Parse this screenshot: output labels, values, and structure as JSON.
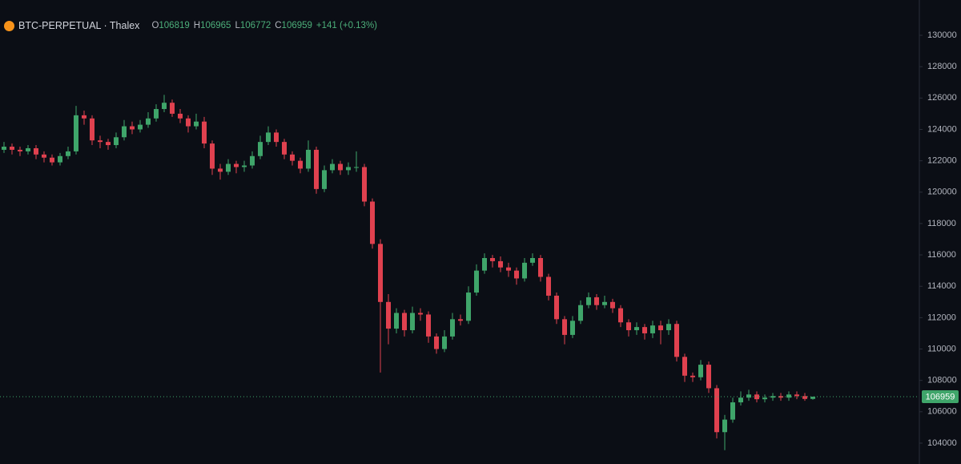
{
  "header": {
    "symbol": "BTC-PERPETUAL · Thalex",
    "ohlc_labels": [
      "O",
      "H",
      "L",
      "C"
    ],
    "change": "+141 (+0.13%)"
  },
  "chart_data": {
    "type": "candlestick",
    "up_color": "#3fa56a",
    "down_color": "#e0414f",
    "ylim": [
      102670,
      132250
    ],
    "yticks": [
      104000,
      106000,
      108000,
      110000,
      112000,
      114000,
      116000,
      118000,
      120000,
      122000,
      124000,
      126000,
      128000,
      130000
    ],
    "grid": false,
    "open": [
      122700,
      122900,
      122700,
      122600,
      122800,
      122400,
      122200,
      121900,
      122300,
      122600,
      124900,
      124700,
      123300,
      123200,
      123000,
      123500,
      124200,
      124000,
      124300,
      124700,
      125300,
      125700,
      125000,
      124700,
      124200,
      124500,
      123100,
      121500,
      121300,
      121800,
      121600,
      121700,
      122300,
      123200,
      123800,
      123200,
      122400,
      122000,
      121500,
      122700,
      120200,
      121400,
      121800,
      121400,
      121600,
      121600,
      119400,
      116700,
      113000,
      111300,
      112300,
      111200,
      112300,
      112200,
      110800,
      110000,
      110800,
      111900,
      111800,
      113600,
      115000,
      115800,
      115600,
      115200,
      115000,
      114500,
      115500,
      115800,
      114600,
      113400,
      111900,
      110900,
      111800,
      112800,
      113300,
      112800,
      113000,
      112600,
      111700,
      111200,
      111400,
      111000,
      111500,
      111200,
      111600,
      109500,
      108300,
      108200,
      109000,
      107500,
      104700,
      105500,
      106600,
      106900,
      107100,
      106800,
      106900,
      107000,
      106900,
      107100,
      107000,
      106819
    ],
    "high": [
      123200,
      123100,
      122900,
      123000,
      123000,
      122600,
      122400,
      122500,
      122900,
      125500,
      125200,
      124900,
      123600,
      123400,
      123800,
      124600,
      124500,
      124600,
      125100,
      125600,
      126200,
      125900,
      125300,
      124900,
      125000,
      124800,
      123300,
      121800,
      122100,
      122000,
      122000,
      122600,
      123600,
      124200,
      124000,
      123400,
      122600,
      122200,
      123300,
      122900,
      121700,
      122100,
      122000,
      121900,
      122600,
      121800,
      119600,
      117000,
      113500,
      112600,
      112500,
      112700,
      112600,
      112400,
      111000,
      111200,
      112300,
      112200,
      114000,
      115400,
      116100,
      116000,
      115900,
      115500,
      115200,
      115800,
      116100,
      116000,
      114800,
      113600,
      112100,
      112100,
      113100,
      113600,
      113500,
      113400,
      113200,
      112800,
      111900,
      111700,
      111600,
      111800,
      111800,
      111900,
      111800,
      109700,
      108500,
      109300,
      109200,
      107700,
      105800,
      106900,
      107300,
      107400,
      107300,
      107100,
      107200,
      107200,
      107300,
      107300,
      107200,
      106965
    ],
    "low": [
      122500,
      122400,
      122300,
      122400,
      122100,
      121900,
      121700,
      121700,
      122100,
      122400,
      124300,
      123000,
      122800,
      122700,
      122800,
      123300,
      123700,
      123800,
      124100,
      124500,
      125100,
      124800,
      124400,
      123800,
      124000,
      122800,
      121100,
      120800,
      121100,
      121200,
      121300,
      121500,
      122100,
      123000,
      122900,
      122100,
      121700,
      121200,
      121300,
      119900,
      120000,
      121200,
      121100,
      121100,
      121300,
      119100,
      116400,
      108500,
      110300,
      111000,
      110800,
      111000,
      111800,
      110400,
      109700,
      109800,
      110600,
      111500,
      111600,
      113400,
      114800,
      115200,
      114900,
      114600,
      114100,
      114300,
      115300,
      114300,
      113100,
      111600,
      110300,
      110700,
      111600,
      112600,
      112500,
      112600,
      112300,
      111400,
      110800,
      110900,
      110600,
      110700,
      110300,
      110900,
      109200,
      107900,
      107900,
      108000,
      107200,
      104300,
      103550,
      105300,
      106400,
      106700,
      106600,
      106600,
      106700,
      106700,
      106700,
      106800,
      106700,
      106772
    ],
    "close": [
      122900,
      122700,
      122600,
      122800,
      122400,
      122200,
      121900,
      122300,
      122600,
      124900,
      124700,
      123300,
      123200,
      123000,
      123500,
      124200,
      124000,
      124300,
      124700,
      125300,
      125700,
      125000,
      124700,
      124200,
      124500,
      123100,
      121500,
      121300,
      121800,
      121600,
      121700,
      122300,
      123200,
      123800,
      123200,
      122400,
      122000,
      121500,
      122700,
      120200,
      121400,
      121800,
      121400,
      121600,
      121600,
      119400,
      116700,
      113000,
      111300,
      112300,
      111200,
      112300,
      112200,
      110800,
      110000,
      110800,
      111900,
      111800,
      113600,
      115000,
      115800,
      115600,
      115200,
      115000,
      114500,
      115500,
      115800,
      114600,
      113400,
      111900,
      110900,
      111800,
      112800,
      113300,
      112800,
      113000,
      112600,
      111700,
      111200,
      111400,
      111000,
      111500,
      111200,
      111600,
      109500,
      108300,
      108200,
      109000,
      107500,
      104700,
      105500,
      106600,
      106900,
      107100,
      106800,
      106900,
      107000,
      106900,
      107100,
      107000,
      106819,
      106959
    ]
  }
}
